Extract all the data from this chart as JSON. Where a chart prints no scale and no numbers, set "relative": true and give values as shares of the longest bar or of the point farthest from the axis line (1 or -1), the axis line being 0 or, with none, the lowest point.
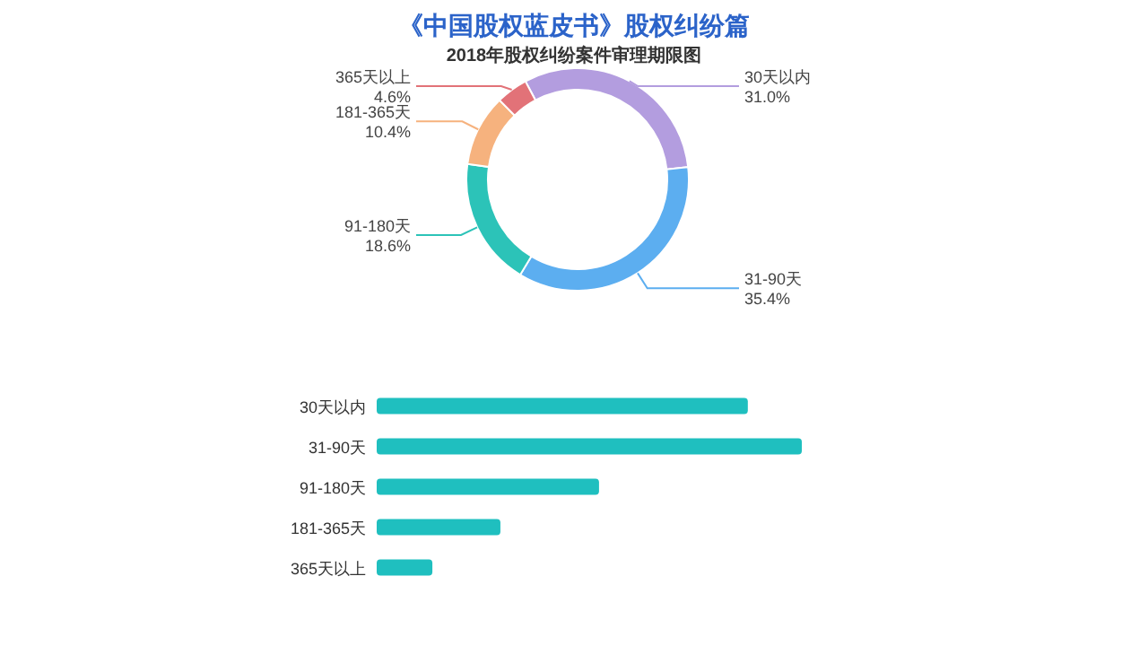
{
  "chart_data": [
    {
      "type": "donut",
      "title": "《中国股权蓝皮书》股权纠纷篇",
      "subtitle": "2018年股权纠纷案件审理期限图",
      "categories": [
        "30天以内",
        "31-90天",
        "91-180天",
        "181-365天",
        "365天以上"
      ],
      "values": [
        31.0,
        35.4,
        18.6,
        10.4,
        4.6
      ],
      "value_labels": [
        "31.0%",
        "35.4%",
        "18.6%",
        "10.4%",
        "4.6%"
      ],
      "colors": [
        "#b39ddf",
        "#5caef0",
        "#2cc3b8",
        "#f6b27e",
        "#e27278"
      ]
    },
    {
      "type": "bar",
      "orientation": "horizontal",
      "relative": true,
      "categories": [
        "30天以内",
        "31-90天",
        "91-180天",
        "181-365天",
        "365天以上"
      ],
      "values": [
        0.873,
        1,
        0.523,
        0.291,
        0.131
      ],
      "color": "#1fbfbf"
    }
  ]
}
